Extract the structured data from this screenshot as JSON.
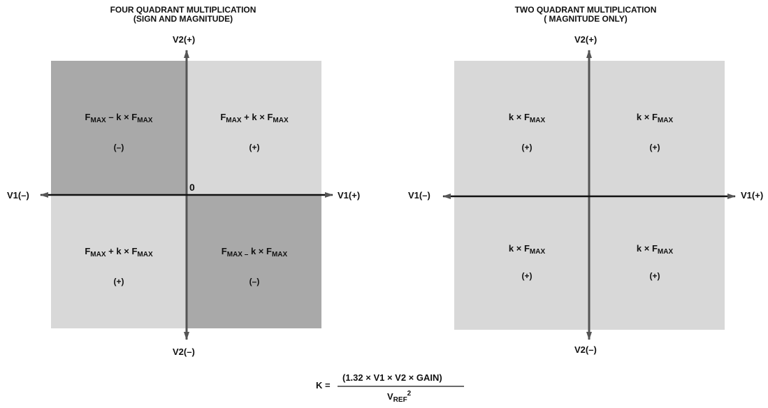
{
  "left": {
    "title_line1": "FOUR QUADRANT MULTIPLICATION",
    "title_line2": "(SIGN AND MAGNITUDE)",
    "axis": {
      "v2_pos": "V2(+)",
      "v2_neg": "V2(–)",
      "v1_pos": "V1(+)",
      "v1_neg": "V1(–)",
      "origin": "0"
    },
    "quadrants": {
      "tl": {
        "sign": "(–)"
      },
      "tr": {
        "sign": "(+)"
      },
      "bl": {
        "sign": "(+)"
      },
      "br": {
        "sign": "(–)"
      }
    }
  },
  "right": {
    "title_line1": "TWO QUADRANT MULTIPLICATION",
    "title_line2": "( MAGNITUDE ONLY)",
    "axis": {
      "v2_pos": "V2(+)",
      "v2_neg": "V2(–)",
      "v1_pos": "V1(+)",
      "v1_neg": "V1(–)"
    },
    "quadrants": {
      "tl": {
        "sign": "(+)"
      },
      "tr": {
        "sign": "(+)"
      },
      "bl": {
        "sign": "(+)"
      },
      "br": {
        "sign": "(+)"
      }
    }
  },
  "text": {
    "F": "F",
    "MAX": "MAX",
    "k": "k",
    "times": "×",
    "plus": "+",
    "minus": "–",
    "formula_lhs": "K  =",
    "formula_num": "(1.32 × V1 × V2 × GAIN)",
    "formula_den_v": "V",
    "formula_den_sub": "REF",
    "formula_den_sup": "2"
  },
  "colors": {
    "dark_fill": "#a9a9a9",
    "light_fill": "#d8d8d8",
    "axis": "#555555"
  }
}
